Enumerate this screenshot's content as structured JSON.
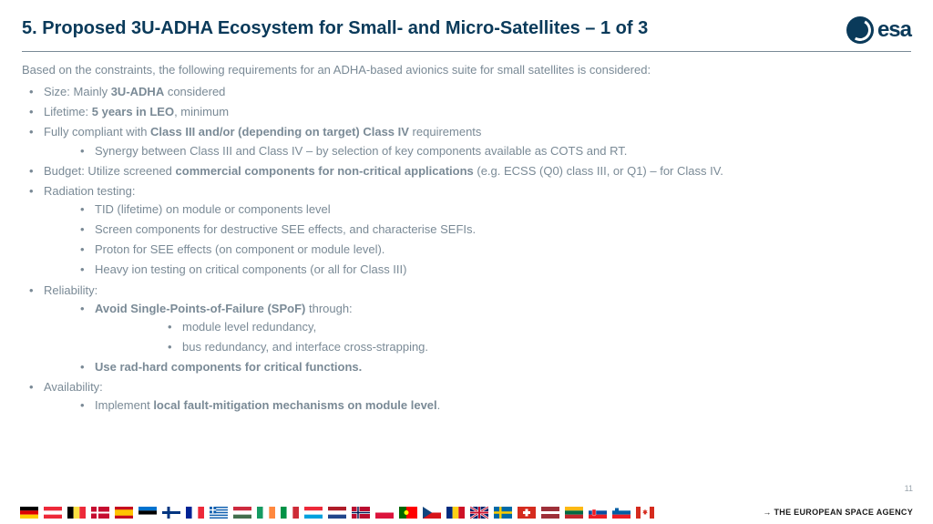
{
  "title": "5. Proposed 3U-ADHA Ecosystem for Small- and Micro-Satellites – 1 of 3",
  "logo_text": "esa",
  "intro": "Based on the constraints, the following requirements for an ADHA-based avionics suite for small satellites is considered:",
  "b1_pre": "Size: Mainly ",
  "b1_bold": "3U-ADHA",
  "b1_post": " considered",
  "b2_pre": "Lifetime: ",
  "b2_bold": "5 years in LEO",
  "b2_post": ", minimum",
  "b3_pre": "Fully compliant with ",
  "b3_bold": "Class III and/or (depending on target) Class IV",
  "b3_post": " requirements",
  "b3_1": "Synergy between Class III and Class IV – by selection of key components available as COTS and RT.",
  "b4_pre": "Budget: Utilize screened ",
  "b4_bold": "commercial components for non-critical applications",
  "b4_post": " (e.g. ECSS (Q0) class III, or Q1) – for Class IV.",
  "b5": "Radiation testing:",
  "b5_1": "TID (lifetime) on module or components level",
  "b5_2": "Screen components for destructive SEE effects, and characterise SEFIs.",
  "b5_3": "Proton for SEE effects (on component or module level).",
  "b5_4": "Heavy ion testing on critical components (or all for Class III)",
  "b6": "Reliability:",
  "b6_1_bold": "Avoid Single-Points-of-Failure (SPoF)",
  "b6_1_post": " through:",
  "b6_1_1": "module level redundancy,",
  "b6_1_2": "bus redundancy, and interface cross-strapping.",
  "b6_2_bold": "Use rad-hard components for critical functions.",
  "b7": "Availability:",
  "b7_1_pre": "Implement ",
  "b7_1_bold": "local fault-mitigation mechanisms on module level",
  "b7_1_post": ".",
  "page_num": "11",
  "tagline": "→ THE EUROPEAN SPACE AGENCY",
  "colors": {
    "title": "#0a3a5a",
    "body": "#7a8a96",
    "divider": "#7a8a96",
    "background": "#ffffff"
  },
  "flags": [
    {
      "name": "de",
      "svg": "<rect width='20' height='4.33' fill='#000'/><rect y='4.33' width='20' height='4.33' fill='#dd0000'/><rect y='8.66' width='20' height='4.33' fill='#ffce00'/>"
    },
    {
      "name": "at",
      "svg": "<rect width='20' height='13' fill='#ed2939'/><rect y='4.33' width='20' height='4.33' fill='#fff'/>"
    },
    {
      "name": "be",
      "svg": "<rect width='6.66' height='13' fill='#000'/><rect x='6.66' width='6.66' height='13' fill='#fae042'/><rect x='13.33' width='6.66' height='13' fill='#ed2939'/>"
    },
    {
      "name": "dk",
      "svg": "<rect width='20' height='13' fill='#c60c30'/><rect x='6' width='2' height='13' fill='#fff'/><rect y='5.5' width='20' height='2' fill='#fff'/>"
    },
    {
      "name": "es",
      "svg": "<rect width='20' height='13' fill='#c60b1e'/><rect y='3.25' width='20' height='6.5' fill='#ffc400'/>"
    },
    {
      "name": "ee",
      "svg": "<rect width='20' height='4.33' fill='#0072ce'/><rect y='4.33' width='20' height='4.33' fill='#000'/><rect y='8.66' width='20' height='4.33' fill='#fff'/>"
    },
    {
      "name": "fi",
      "svg": "<rect width='20' height='13' fill='#fff'/><rect x='5.5' width='3' height='13' fill='#003580'/><rect y='5' width='20' height='3' fill='#003580'/>"
    },
    {
      "name": "fr",
      "svg": "<rect width='6.66' height='13' fill='#002395'/><rect x='6.66' width='6.66' height='13' fill='#fff'/><rect x='13.33' width='6.66' height='13' fill='#ed2939'/>"
    },
    {
      "name": "gr",
      "svg": "<rect width='20' height='13' fill='#0d5eaf'/><rect y='1.44' width='20' height='1.44' fill='#fff'/><rect y='4.33' width='20' height='1.44' fill='#fff'/><rect y='7.22' width='20' height='1.44' fill='#fff'/><rect y='10.11' width='20' height='1.44' fill='#fff'/><rect width='7.22' height='7.22' fill='#0d5eaf'/><rect x='2.89' width='1.44' height='7.22' fill='#fff'/><rect y='2.89' width='7.22' height='1.44' fill='#fff'/>"
    },
    {
      "name": "hu",
      "svg": "<rect width='20' height='4.33' fill='#cd2a3e'/><rect y='4.33' width='20' height='4.33' fill='#fff'/><rect y='8.66' width='20' height='4.33' fill='#436f4d'/>"
    },
    {
      "name": "ie",
      "svg": "<rect width='6.66' height='13' fill='#169b62'/><rect x='6.66' width='6.66' height='13' fill='#fff'/><rect x='13.33' width='6.66' height='13' fill='#ff883e'/>"
    },
    {
      "name": "it",
      "svg": "<rect width='6.66' height='13' fill='#009246'/><rect x='6.66' width='6.66' height='13' fill='#fff'/><rect x='13.33' width='6.66' height='13' fill='#ce2b37'/>"
    },
    {
      "name": "lu",
      "svg": "<rect width='20' height='4.33' fill='#ed2939'/><rect y='4.33' width='20' height='4.33' fill='#fff'/><rect y='8.66' width='20' height='4.33' fill='#00a1de'/>"
    },
    {
      "name": "nl",
      "svg": "<rect width='20' height='4.33' fill='#ae1c28'/><rect y='4.33' width='20' height='4.33' fill='#fff'/><rect y='8.66' width='20' height='4.33' fill='#21468b'/>"
    },
    {
      "name": "no",
      "svg": "<rect width='20' height='13' fill='#ba0c2f'/><rect x='5.5' width='3' height='13' fill='#fff'/><rect y='5' width='20' height='3' fill='#fff'/><rect x='6.25' width='1.5' height='13' fill='#00205b'/><rect y='5.75' width='20' height='1.5' fill='#00205b'/>"
    },
    {
      "name": "pl",
      "svg": "<rect width='20' height='6.5' fill='#fff'/><rect y='6.5' width='20' height='6.5' fill='#dc143c'/>"
    },
    {
      "name": "pt",
      "svg": "<rect width='8' height='13' fill='#006600'/><rect x='8' width='12' height='13' fill='#ff0000'/><circle cx='8' cy='6.5' r='2.5' fill='#ffff00'/>"
    },
    {
      "name": "cz",
      "svg": "<rect width='20' height='6.5' fill='#fff'/><rect y='6.5' width='20' height='6.5' fill='#d7141a'/><polygon points='0,0 10,6.5 0,13' fill='#11457e'/>"
    },
    {
      "name": "ro",
      "svg": "<rect width='6.66' height='13' fill='#002b7f'/><rect x='6.66' width='6.66' height='13' fill='#fcd116'/><rect x='13.33' width='6.66' height='13' fill='#ce1126'/>"
    },
    {
      "name": "gb",
      "svg": "<rect width='20' height='13' fill='#012169'/><path d='M0,0 L20,13 M20,0 L0,13' stroke='#fff' stroke-width='2.6'/><path d='M0,0 L20,13 M20,0 L0,13' stroke='#c8102e' stroke-width='1'/><rect x='8.5' width='3' height='13' fill='#fff'/><rect y='5' width='20' height='3' fill='#fff'/><rect x='9' width='2' height='13' fill='#c8102e'/><rect y='5.5' width='20' height='2' fill='#c8102e'/>"
    },
    {
      "name": "se",
      "svg": "<rect width='20' height='13' fill='#006aa7'/><rect x='6' width='2.5' height='13' fill='#fecc00'/><rect y='5.25' width='20' height='2.5' fill='#fecc00'/>"
    },
    {
      "name": "ch",
      "svg": "<rect width='20' height='13' fill='#d52b1e'/><rect x='8.5' y='2.5' width='3' height='8' fill='#fff'/><rect x='6' y='5' width='8' height='3' fill='#fff'/>"
    },
    {
      "name": "lv",
      "svg": "<rect width='20' height='13' fill='#9e3039'/><rect y='5' width='20' height='3' fill='#fff'/>"
    },
    {
      "name": "lt",
      "svg": "<rect width='20' height='4.33' fill='#fdb913'/><rect y='4.33' width='20' height='4.33' fill='#006a44'/><rect y='8.66' width='20' height='4.33' fill='#c1272d'/>"
    },
    {
      "name": "sk",
      "svg": "<rect width='20' height='4.33' fill='#fff'/><rect y='4.33' width='20' height='4.33' fill='#0b4ea2'/><rect y='8.66' width='20' height='4.33' fill='#ee1c25'/><path d='M4,3 L8,3 L8,9 L6,10 L4,9 Z' fill='#ee1c25' stroke='#fff' stroke-width='0.4'/>"
    },
    {
      "name": "si",
      "svg": "<rect width='20' height='4.33' fill='#fff'/><rect y='4.33' width='20' height='4.33' fill='#005da4'/><rect y='8.66' width='20' height='4.33' fill='#ed1c24'/><rect x='3' y='1.5' width='4' height='4' fill='#005da4'/>"
    },
    {
      "name": "ca",
      "svg": "<rect width='5' height='13' fill='#d52b1e'/><rect x='5' width='10' height='13' fill='#fff'/><rect x='15' width='5' height='13' fill='#d52b1e'/><path d='M10,2.5 L10.8,4.5 L12.5,4 L11.5,6 L13,7 L11,7.3 L11.2,9 L10,8 L8.8,9 L9,7.3 L7,7 L8.5,6 L7.5,4 L9.2,4.5 Z' fill='#d52b1e'/>"
    }
  ]
}
